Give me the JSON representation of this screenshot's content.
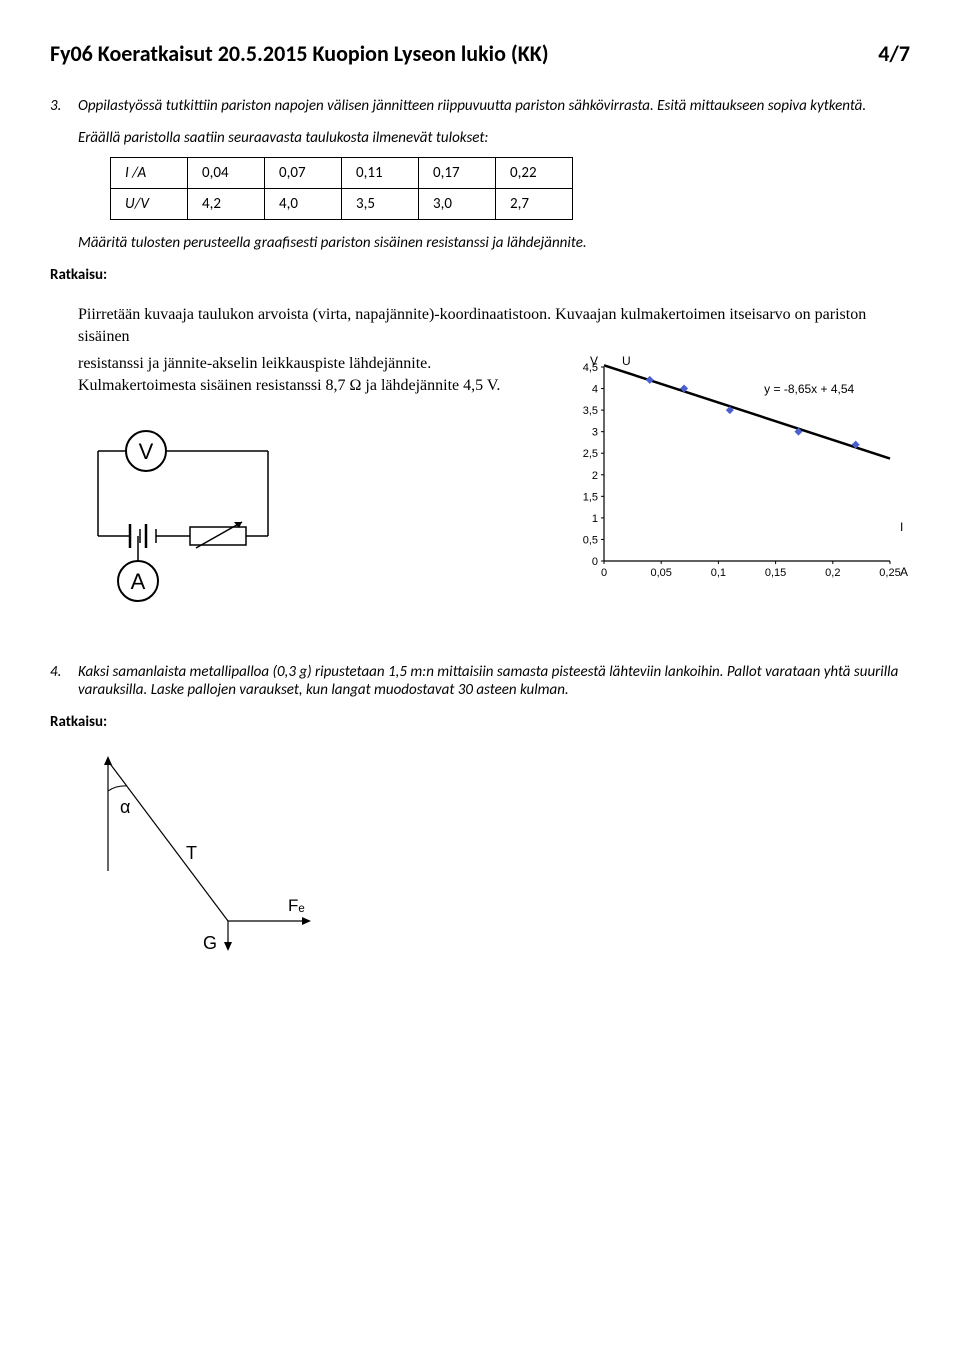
{
  "header": {
    "title": "Fy06 Koeratkaisut 20.5.2015 Kuopion Lyseon lukio (KK)",
    "page": "4/7"
  },
  "q3": {
    "num": "3.",
    "text": "Oppilastyössä tutkittiin pariston napojen välisen jännitteen riippuvuutta pariston sähkövirrasta. Esitä mittaukseen sopiva kytkentä.",
    "lead": "Eräällä paristolla saatiin seuraavasta taulukosta ilmenevät tulokset:",
    "table": {
      "row1_label": "I /A",
      "row1": [
        "0,04",
        "0,07",
        "0,11",
        "0,17",
        "0,22"
      ],
      "row2_label": "U/V",
      "row2": [
        "4,2",
        "4,0",
        "3,5",
        "3,0",
        "2,7"
      ]
    },
    "instr": "Määritä tulosten perusteella graafisesti pariston sisäinen resistanssi ja lähdejännite.",
    "ratkaisu_label": "Ratkaisu:",
    "body1": "Piirretään kuvaaja taulukon arvoista (virta, napajännite)-koordinaatistoon. Kuvaajan kulmakertoimen itseisarvo on pariston sisäinen",
    "body2": "resistanssi ja jännite-akselin leikkauspiste lähdejännite. Kulmakertoimesta sisäinen resistanssi 8,7 Ω ja lähdejännite 4,5 V."
  },
  "chart": {
    "ylabel_top_left": "V",
    "ylabel_top_right": "U",
    "xlabel_right_top": "I",
    "xlabel_right_bottom": "A",
    "equation": "y = -8,65x + 4,54",
    "yticks": [
      "0",
      "0,5",
      "1",
      "1,5",
      "2",
      "2,5",
      "3",
      "3,5",
      "4",
      "4,5"
    ],
    "xticks": [
      "0",
      "0,05",
      "0,1",
      "0,15",
      "0,2",
      "0,25"
    ],
    "points": [
      {
        "x": 0.04,
        "y": 4.2
      },
      {
        "x": 0.07,
        "y": 4.0
      },
      {
        "x": 0.11,
        "y": 3.5
      },
      {
        "x": 0.17,
        "y": 3.0
      },
      {
        "x": 0.22,
        "y": 2.7
      }
    ],
    "fit": {
      "slope": -8.65,
      "intercept": 4.54
    },
    "xlim": [
      0,
      0.25
    ],
    "ylim": [
      0,
      4.5
    ],
    "marker_color": "#4a5fd0",
    "line_color": "#000000",
    "bg": "#ffffff",
    "axis_color": "#000000"
  },
  "circuit": {
    "V": "V",
    "A": "A"
  },
  "q4": {
    "num": "4.",
    "text": "Kaksi samanlaista metallipalloa (0,3 g) ripustetaan 1,5 m:n mittaisiin samasta pisteestä lähteviin lankoihin. Pallot varataan yhtä suurilla varauksilla. Laske pallojen varaukset, kun langat muodostavat 30 asteen kulman.",
    "ratkaisu_label": "Ratkaisu:"
  },
  "force": {
    "alpha": "α",
    "T": "T",
    "Fe": "Fₑ",
    "G": "G"
  }
}
